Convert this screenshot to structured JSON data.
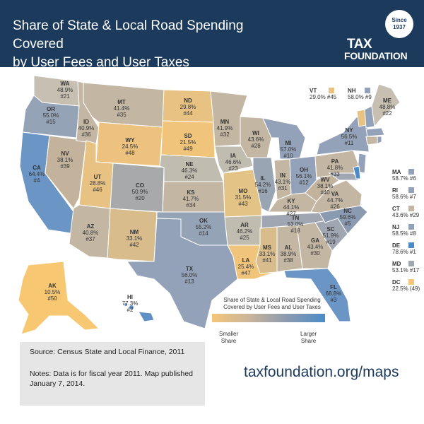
{
  "header": {
    "title_line1": "Share of State & Local Road Spending Covered",
    "title_line2": "by User Fees and User Taxes",
    "logo_since": "Since",
    "logo_year": "1937",
    "logo_tax": "TAX",
    "logo_foundation": "FOUNDATION"
  },
  "colors": {
    "header_bg": "#1b3a5c",
    "smaller_share": "#f4c67a",
    "mid_share": "#c9b49a",
    "larger_share": "#4a8bc8"
  },
  "states": [
    {
      "abbr": "WA",
      "pct": "48.9%",
      "rank": "#21"
    },
    {
      "abbr": "OR",
      "pct": "55.0%",
      "rank": "#15"
    },
    {
      "abbr": "CA",
      "pct": "64.4%",
      "rank": "#4"
    },
    {
      "abbr": "NV",
      "pct": "38.1%",
      "rank": "#39"
    },
    {
      "abbr": "ID",
      "pct": "40.9%",
      "rank": "#36"
    },
    {
      "abbr": "MT",
      "pct": "41.4%",
      "rank": "#35"
    },
    {
      "abbr": "WY",
      "pct": "24.5%",
      "rank": "#48"
    },
    {
      "abbr": "UT",
      "pct": "28.8%",
      "rank": "#46"
    },
    {
      "abbr": "AZ",
      "pct": "40.8%",
      "rank": "#37"
    },
    {
      "abbr": "CO",
      "pct": "50.9%",
      "rank": "#20"
    },
    {
      "abbr": "NM",
      "pct": "33.1%",
      "rank": "#42"
    },
    {
      "abbr": "ND",
      "pct": "29.8%",
      "rank": "#44"
    },
    {
      "abbr": "SD",
      "pct": "21.5%",
      "rank": "#49"
    },
    {
      "abbr": "NE",
      "pct": "46.3%",
      "rank": "#24"
    },
    {
      "abbr": "KS",
      "pct": "41.7%",
      "rank": "#34"
    },
    {
      "abbr": "OK",
      "pct": "55.2%",
      "rank": "#14"
    },
    {
      "abbr": "TX",
      "pct": "56.0%",
      "rank": "#13"
    },
    {
      "abbr": "MN",
      "pct": "41.9%",
      "rank": "#32"
    },
    {
      "abbr": "IA",
      "pct": "46.6%",
      "rank": "#23"
    },
    {
      "abbr": "MO",
      "pct": "31.5%",
      "rank": "#43"
    },
    {
      "abbr": "AR",
      "pct": "46.2%",
      "rank": "#25"
    },
    {
      "abbr": "LA",
      "pct": "25.4%",
      "rank": "#47"
    },
    {
      "abbr": "WI",
      "pct": "43.6%",
      "rank": "#28"
    },
    {
      "abbr": "IL",
      "pct": "54.2%",
      "rank": "#16"
    },
    {
      "abbr": "MI",
      "pct": "57.0%",
      "rank": "#10"
    },
    {
      "abbr": "IN",
      "pct": "43.1%",
      "rank": "#31"
    },
    {
      "abbr": "OH",
      "pct": "56.1%",
      "rank": "#12"
    },
    {
      "abbr": "KY",
      "pct": "44.1%",
      "rank": "#27"
    },
    {
      "abbr": "TN",
      "pct": "53.0%",
      "rank": "#18"
    },
    {
      "abbr": "MS",
      "pct": "33.1%",
      "rank": "#41"
    },
    {
      "abbr": "AL",
      "pct": "38.9%",
      "rank": "#38"
    },
    {
      "abbr": "GA",
      "pct": "43.4%",
      "rank": "#30"
    },
    {
      "abbr": "FL",
      "pct": "68.8%",
      "rank": "#3"
    },
    {
      "abbr": "SC",
      "pct": "51.9%",
      "rank": "#19"
    },
    {
      "abbr": "NC",
      "pct": "59.6%",
      "rank": "#5"
    },
    {
      "abbr": "VA",
      "pct": "44.7%",
      "rank": "#26"
    },
    {
      "abbr": "WV",
      "pct": "38.1%",
      "rank": "#40"
    },
    {
      "abbr": "PA",
      "pct": "41.8%",
      "rank": "#33"
    },
    {
      "abbr": "NY",
      "pct": "56.5%",
      "rank": "#11"
    },
    {
      "abbr": "ME",
      "pct": "48.8%",
      "rank": "#22"
    },
    {
      "abbr": "AK",
      "pct": "10.5%",
      "rank": "#50"
    },
    {
      "abbr": "HI",
      "pct": "77.3%",
      "rank": "#2"
    }
  ],
  "side_states": [
    {
      "abbr": "VT",
      "value": "29.0% #45"
    },
    {
      "abbr": "NH",
      "value": "58.0% #9"
    },
    {
      "abbr": "MA",
      "value": "58.7% #6"
    },
    {
      "abbr": "RI",
      "value": "58.6% #7"
    },
    {
      "abbr": "CT",
      "value": "43.6% #29"
    },
    {
      "abbr": "NJ",
      "value": "58.5% #8"
    },
    {
      "abbr": "DE",
      "value": "78.6% #1"
    },
    {
      "abbr": "MD",
      "value": "53.1% #17"
    },
    {
      "abbr": "DC",
      "value": "22.5% (49)"
    }
  ],
  "legend": {
    "title_line1": "Share of State & Local Road Spending",
    "title_line2": "Covered by User Fees and User Taxes",
    "low_line1": "Smaller",
    "low_line2": "Share",
    "high_line1": "Larger",
    "high_line2": "Share"
  },
  "footer": {
    "source": "Source: Census State and Local Finance, 2011",
    "notes_line1": "Notes: Data is for fiscal year 2011. Map published",
    "notes_line2": "January 7, 2014.",
    "url": "taxfoundation.org/maps"
  }
}
